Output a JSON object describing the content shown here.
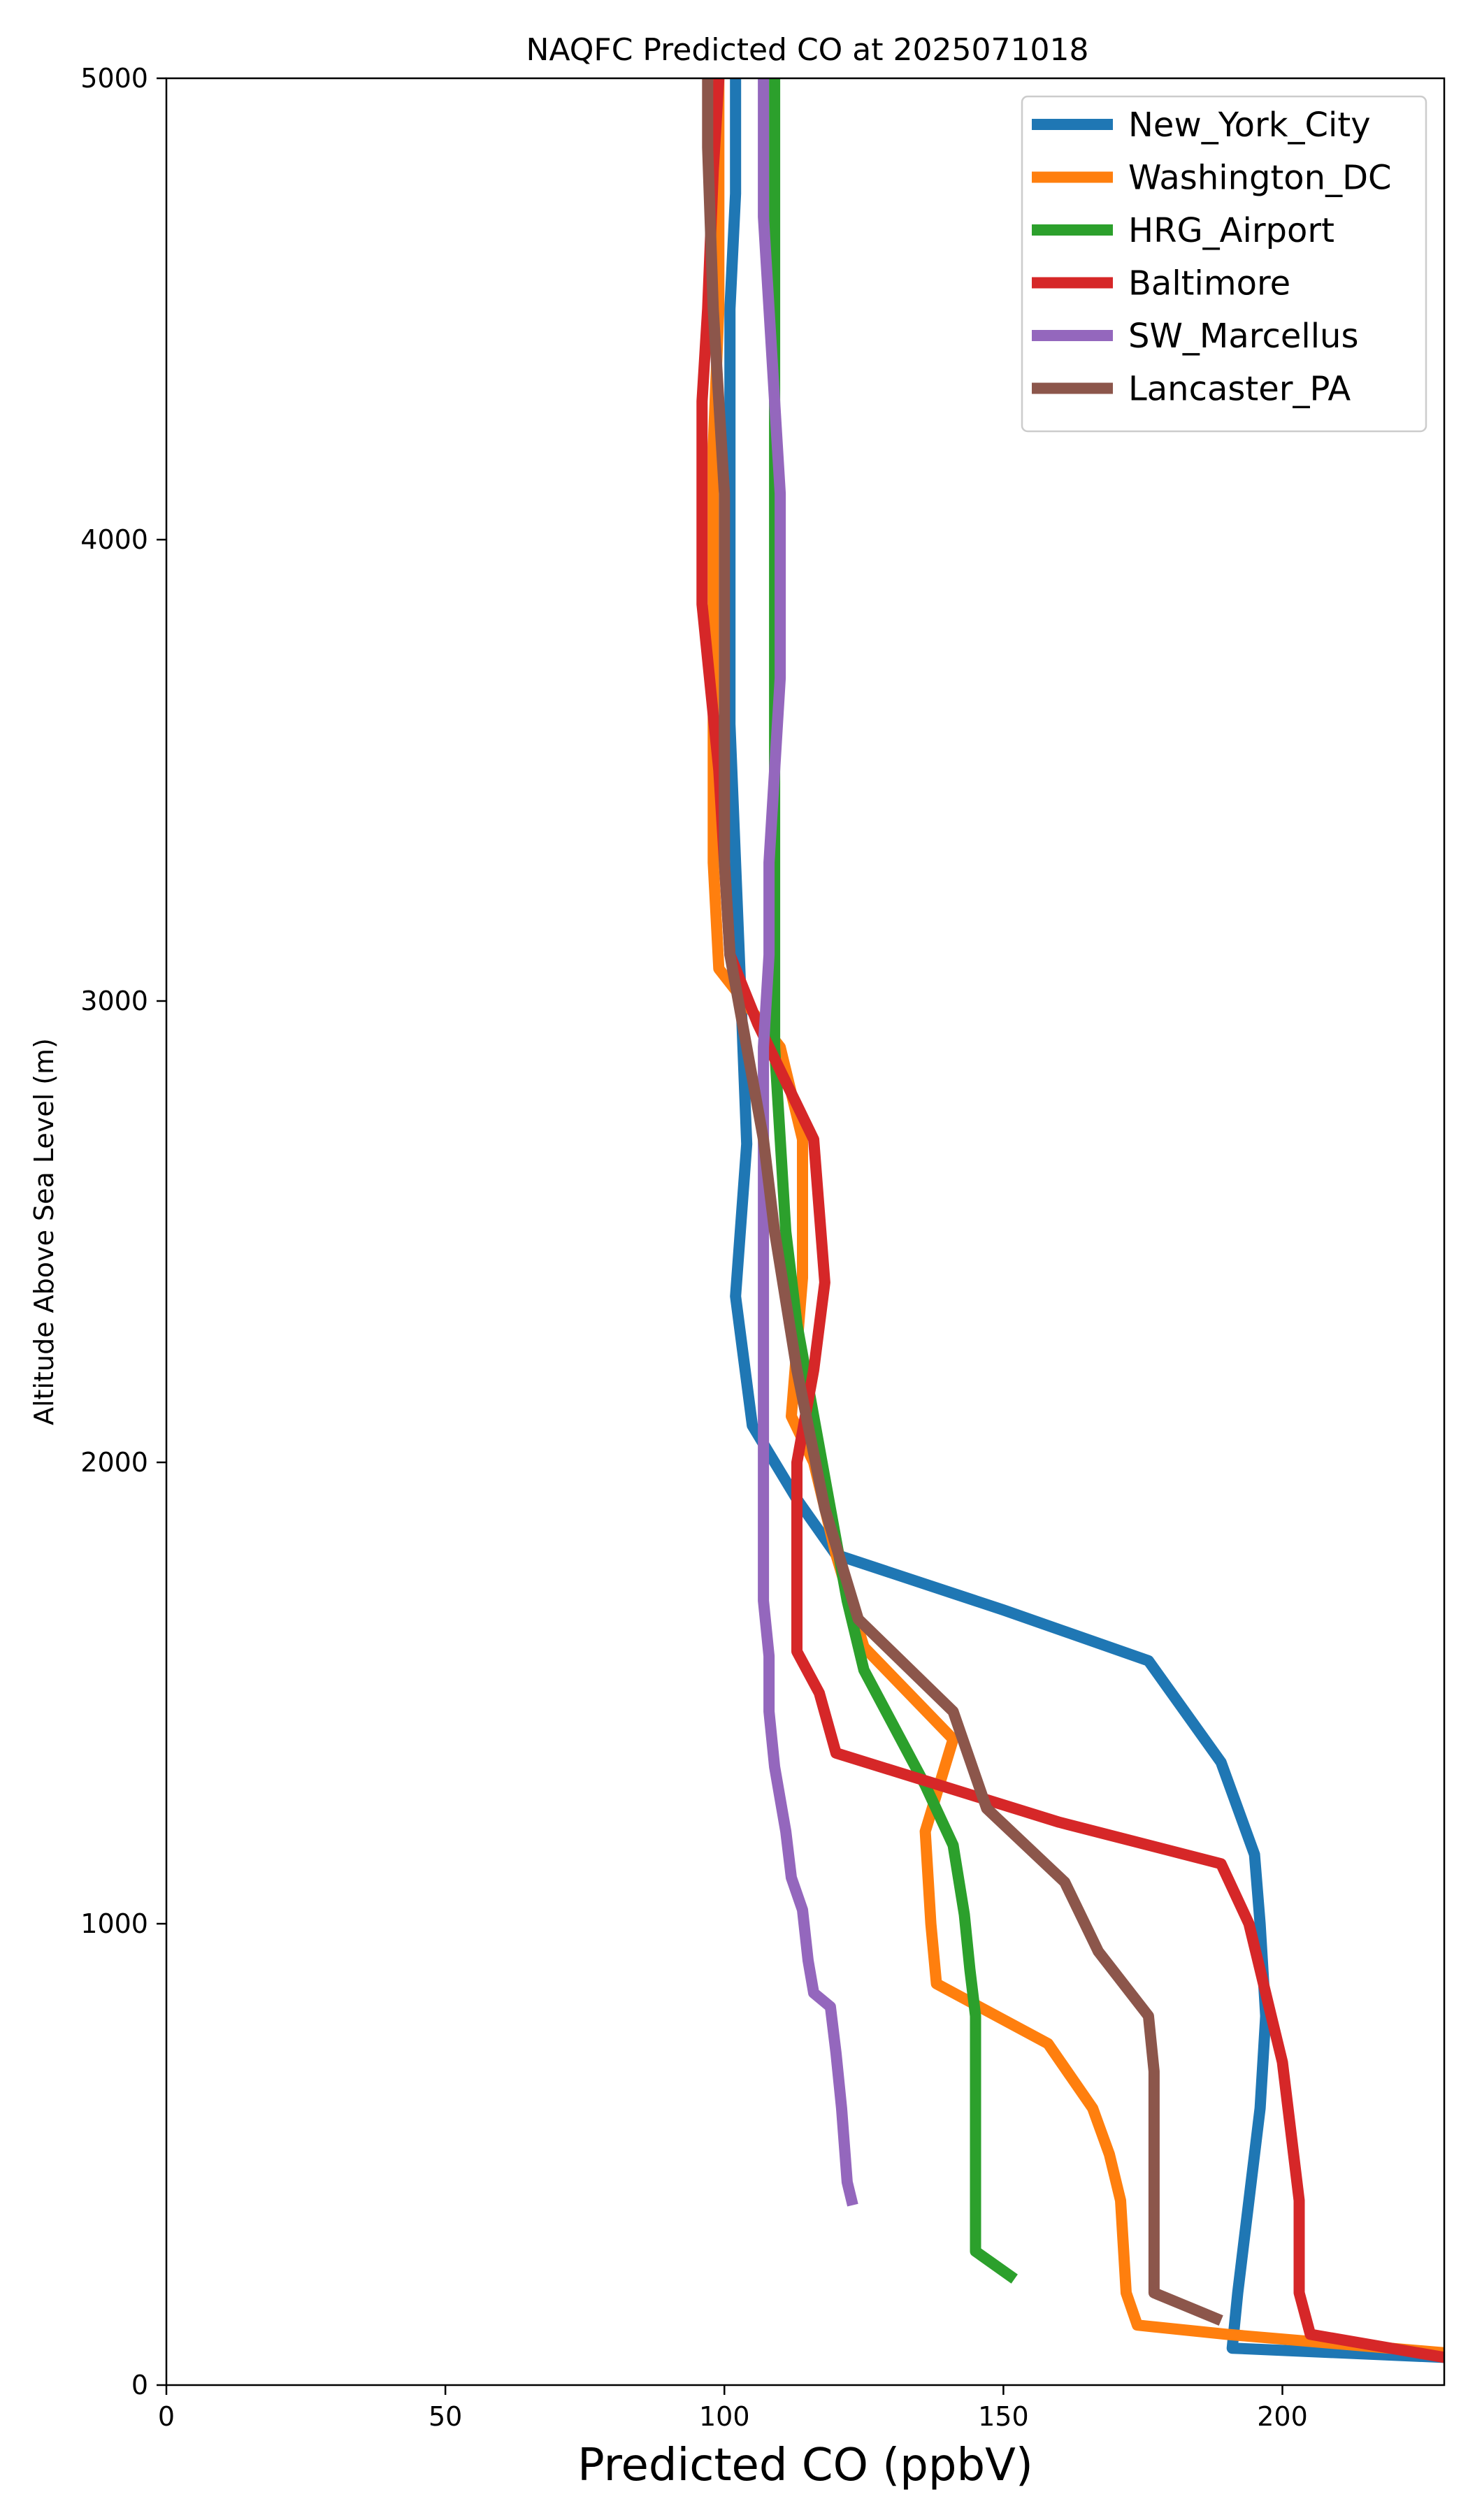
{
  "chart_data": {
    "type": "line",
    "title": "NAQFC Predicted CO at 2025071018",
    "xlabel": "Predicted CO (ppbV)",
    "ylabel": "Altitude Above Sea Level (m)",
    "xlim": [
      0,
      229
    ],
    "ylim": [
      0,
      5000
    ],
    "x_ticks": [
      0,
      50,
      100,
      150,
      200
    ],
    "y_ticks": [
      0,
      1000,
      2000,
      3000,
      4000,
      5000
    ],
    "grid": false,
    "legend_position": "top-right",
    "series": [
      {
        "name": "New_York_City",
        "color": "#1f77b4",
        "points": [
          [
            229,
            60
          ],
          [
            191,
            80
          ],
          [
            192,
            200
          ],
          [
            194,
            400
          ],
          [
            196,
            600
          ],
          [
            197,
            800
          ],
          [
            196,
            1000
          ],
          [
            195,
            1150
          ],
          [
            189,
            1350
          ],
          [
            176,
            1570
          ],
          [
            150,
            1680
          ],
          [
            120,
            1800
          ],
          [
            113,
            1920
          ],
          [
            105,
            2080
          ],
          [
            102,
            2360
          ],
          [
            104,
            2690
          ],
          [
            103,
            3000
          ],
          [
            102,
            3300
          ],
          [
            101,
            3600
          ],
          [
            101,
            3900
          ],
          [
            101,
            4200
          ],
          [
            101,
            4500
          ],
          [
            102,
            4750
          ],
          [
            102,
            5000
          ]
        ]
      },
      {
        "name": "Washington_DC",
        "color": "#ff7f0e",
        "points": [
          [
            229,
            70
          ],
          [
            190,
            110
          ],
          [
            174,
            130
          ],
          [
            172,
            200
          ],
          [
            171,
            400
          ],
          [
            169,
            500
          ],
          [
            166,
            600
          ],
          [
            158,
            740
          ],
          [
            138,
            870
          ],
          [
            137,
            1000
          ],
          [
            136,
            1200
          ],
          [
            141,
            1400
          ],
          [
            125,
            1600
          ],
          [
            120,
            1800
          ],
          [
            116,
            2000
          ],
          [
            112,
            2100
          ],
          [
            114,
            2400
          ],
          [
            114,
            2700
          ],
          [
            110,
            2900
          ],
          [
            99,
            3070
          ],
          [
            98,
            3300
          ],
          [
            98,
            3600
          ],
          [
            98,
            3900
          ],
          [
            98,
            4200
          ],
          [
            99,
            4500
          ],
          [
            99,
            4800
          ],
          [
            99,
            5000
          ]
        ]
      },
      {
        "name": "HRG_Airport",
        "color": "#2ca02c",
        "points": [
          [
            152,
            230
          ],
          [
            145,
            290
          ],
          [
            145,
            400
          ],
          [
            145,
            600
          ],
          [
            145,
            800
          ],
          [
            144,
            900
          ],
          [
            143,
            1020
          ],
          [
            141,
            1170
          ],
          [
            136,
            1300
          ],
          [
            125,
            1550
          ],
          [
            122,
            1700
          ],
          [
            119,
            1900
          ],
          [
            116,
            2100
          ],
          [
            113,
            2300
          ],
          [
            111,
            2500
          ],
          [
            110,
            2700
          ],
          [
            109,
            2900
          ],
          [
            109,
            3100
          ],
          [
            109,
            3300
          ],
          [
            109,
            3500
          ],
          [
            109,
            3700
          ],
          [
            109,
            3900
          ],
          [
            109,
            4100
          ],
          [
            109,
            4400
          ],
          [
            109,
            4700
          ],
          [
            109,
            5000
          ]
        ]
      },
      {
        "name": "Baltimore",
        "color": "#d62728",
        "points": [
          [
            229,
            60
          ],
          [
            205,
            110
          ],
          [
            203,
            200
          ],
          [
            203,
            400
          ],
          [
            202,
            500
          ],
          [
            201,
            600
          ],
          [
            200,
            700
          ],
          [
            198,
            800
          ],
          [
            196,
            900
          ],
          [
            194,
            1000
          ],
          [
            189,
            1130
          ],
          [
            160,
            1220
          ],
          [
            120,
            1370
          ],
          [
            117,
            1500
          ],
          [
            113,
            1590
          ],
          [
            113,
            1800
          ],
          [
            113,
            2000
          ],
          [
            116,
            2200
          ],
          [
            118,
            2390
          ],
          [
            116,
            2700
          ],
          [
            106,
            2950
          ],
          [
            101,
            3100
          ],
          [
            100,
            3300
          ],
          [
            99,
            3500
          ],
          [
            96,
            3860
          ],
          [
            96,
            4100
          ],
          [
            96,
            4300
          ],
          [
            97,
            4500
          ],
          [
            98,
            4800
          ],
          [
            99,
            5000
          ]
        ]
      },
      {
        "name": "SW_Marcellus",
        "color": "#9467bd",
        "points": [
          [
            123,
            390
          ],
          [
            122,
            440
          ],
          [
            121,
            600
          ],
          [
            120,
            720
          ],
          [
            119,
            820
          ],
          [
            116,
            850
          ],
          [
            115,
            920
          ],
          [
            114,
            1030
          ],
          [
            112,
            1100
          ],
          [
            111,
            1200
          ],
          [
            109,
            1340
          ],
          [
            108,
            1460
          ],
          [
            108,
            1580
          ],
          [
            107,
            1700
          ],
          [
            107,
            1900
          ],
          [
            107,
            2100
          ],
          [
            107,
            2300
          ],
          [
            107,
            2500
          ],
          [
            107,
            2700
          ],
          [
            107,
            2900
          ],
          [
            108,
            3100
          ],
          [
            108,
            3300
          ],
          [
            109,
            3500
          ],
          [
            110,
            3700
          ],
          [
            110,
            3900
          ],
          [
            110,
            4100
          ],
          [
            109,
            4300
          ],
          [
            108,
            4500
          ],
          [
            107,
            4700
          ],
          [
            107,
            5000
          ]
        ]
      },
      {
        "name": "Lancaster_PA",
        "color": "#8c564b",
        "points": [
          [
            189,
            140
          ],
          [
            177,
            200
          ],
          [
            177,
            300
          ],
          [
            177,
            400
          ],
          [
            177,
            500
          ],
          [
            177,
            600
          ],
          [
            177,
            680
          ],
          [
            176,
            800
          ],
          [
            167,
            940
          ],
          [
            161,
            1090
          ],
          [
            147,
            1250
          ],
          [
            141,
            1460
          ],
          [
            124,
            1660
          ],
          [
            118,
            1900
          ],
          [
            113,
            2200
          ],
          [
            109,
            2500
          ],
          [
            107,
            2700
          ],
          [
            104,
            2900
          ],
          [
            101,
            3100
          ],
          [
            100,
            3300
          ],
          [
            100,
            3500
          ],
          [
            100,
            3700
          ],
          [
            100,
            3900
          ],
          [
            100,
            4100
          ],
          [
            98,
            4500
          ],
          [
            97,
            4850
          ],
          [
            97,
            5000
          ]
        ]
      }
    ]
  }
}
